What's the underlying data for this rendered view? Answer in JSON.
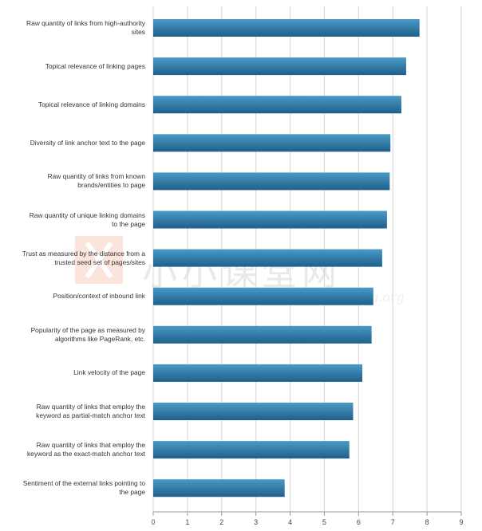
{
  "watermark": {
    "text": "小小课堂网",
    "url": "xiaoxiaoketang.org"
  },
  "colors": {
    "bar_top": "#4a9ac6",
    "bar_bottom": "#1f5f8b",
    "grid": "#d5d5d5"
  },
  "chart_data": {
    "type": "bar",
    "orientation": "horizontal",
    "categories": [
      [
        "Raw quantity of links from high-authority",
        "sites"
      ],
      [
        "Topical relevance of linking pages"
      ],
      [
        "Topical relevance of linking domains"
      ],
      [
        "Diversity of link anchor text to the page"
      ],
      [
        "Raw quantity of links from known",
        "brands/entities to page"
      ],
      [
        "Raw quantity of unique linking domains",
        "to the page"
      ],
      [
        "Trust as measured by the distance from a",
        "trusted seed set of pages/sites"
      ],
      [
        "Position/context of inbound link"
      ],
      [
        "Popularity of the page as measured by",
        "algorithms like PageRank, etc."
      ],
      [
        "Link velocity of the page"
      ],
      [
        "Raw quantity of links that employ the",
        "keyword as partial-match anchor text"
      ],
      [
        "Raw quantity of links that employ the",
        "keyword as the exact-match anchor text"
      ],
      [
        "Sentiment of the external links pointing to",
        "the page"
      ]
    ],
    "values": [
      7.78,
      7.39,
      7.25,
      6.93,
      6.91,
      6.83,
      6.69,
      6.43,
      6.38,
      6.11,
      5.84,
      5.73,
      3.84
    ],
    "xlim": [
      0,
      9
    ],
    "xticks": [
      "0",
      "1",
      "2",
      "3",
      "4",
      "5",
      "6",
      "7",
      "8",
      "9"
    ],
    "grid": true,
    "legend": "none",
    "title": "",
    "xlabel": "",
    "ylabel": ""
  }
}
